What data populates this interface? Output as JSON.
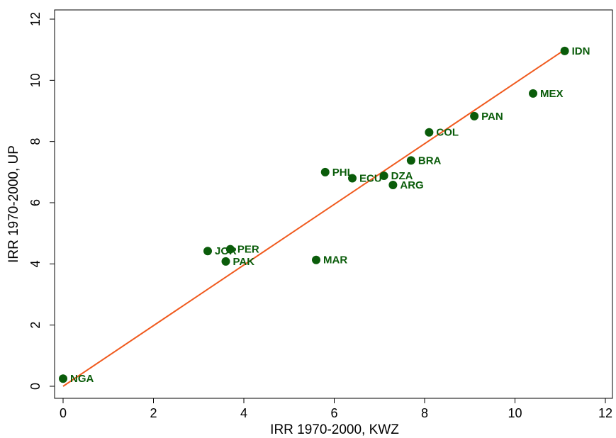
{
  "chart_data": {
    "type": "scatter",
    "xlabel": "IRR 1970-2000, KWZ",
    "ylabel": "IRR 1970-2000, UP",
    "xlim": [
      0,
      12
    ],
    "ylim": [
      0,
      12
    ],
    "xticks": [
      "0",
      "2",
      "4",
      "6",
      "8",
      "10",
      "12"
    ],
    "yticks": [
      "0",
      "2",
      "4",
      "6",
      "8",
      "10",
      "12"
    ],
    "grid": false,
    "colors": {
      "points": "#0a5c0a",
      "labels": "#0a5c0a",
      "fit_line": "#f05a1e"
    },
    "points": [
      {
        "label": "NGA",
        "x": 0.0,
        "y": 0.25
      },
      {
        "label": "JOR",
        "x": 3.2,
        "y": 4.42
      },
      {
        "label": "PER",
        "x": 3.7,
        "y": 4.48
      },
      {
        "label": "PAK",
        "x": 3.6,
        "y": 4.08
      },
      {
        "label": "MAR",
        "x": 5.6,
        "y": 4.13
      },
      {
        "label": "PHL",
        "x": 5.8,
        "y": 7.0
      },
      {
        "label": "ECU",
        "x": 6.4,
        "y": 6.8
      },
      {
        "label": "DZA",
        "x": 7.1,
        "y": 6.88
      },
      {
        "label": "ARG",
        "x": 7.3,
        "y": 6.58
      },
      {
        "label": "BRA",
        "x": 7.7,
        "y": 7.38
      },
      {
        "label": "COL",
        "x": 8.1,
        "y": 8.3
      },
      {
        "label": "PAN",
        "x": 9.1,
        "y": 8.83
      },
      {
        "label": "MEX",
        "x": 10.4,
        "y": 9.57
      },
      {
        "label": "IDN",
        "x": 11.1,
        "y": 10.96
      }
    ],
    "fit_line": {
      "x": [
        0.0,
        11.1
      ],
      "y": [
        0.0,
        11.0
      ]
    }
  }
}
